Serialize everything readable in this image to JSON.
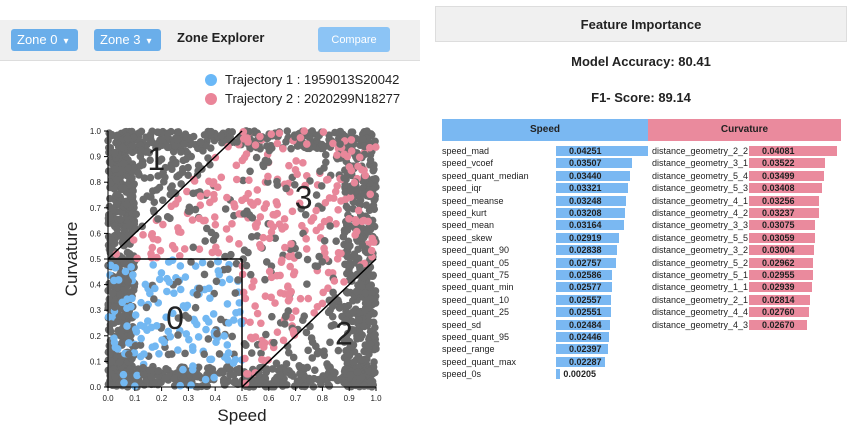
{
  "toolbar": {
    "zone_a": "Zone 0",
    "zone_b": "Zone 3",
    "title": "Zone Explorer",
    "compare_label": "Compare"
  },
  "legend": [
    {
      "label": "Trajectory 1 : 1959013S20042",
      "color": "#6ab8f7"
    },
    {
      "label": "Trajectory 2 : 2020299N18277",
      "color": "#ea8599"
    }
  ],
  "chart_data": {
    "type": "scatter",
    "xlabel": "Speed",
    "ylabel": "Curvature",
    "xlim": [
      0,
      1
    ],
    "ylim": [
      0,
      1
    ],
    "xticks": [
      "0.0",
      "0.1",
      "0.2",
      "0.3",
      "0.4",
      "0.5",
      "0.6",
      "0.7",
      "0.8",
      "0.9",
      "1.0"
    ],
    "yticks": [
      "0.0",
      "0.1",
      "0.2",
      "0.3",
      "0.4",
      "0.5",
      "0.6",
      "0.7",
      "0.8",
      "0.9",
      "1.0"
    ],
    "colors": {
      "gray": "#6b6b6b",
      "blue": "#73b8f2",
      "pink": "#e8879a"
    },
    "zones": [
      {
        "label": "0",
        "region": [
          [
            0,
            0
          ],
          [
            0.5,
            0
          ],
          [
            0.5,
            0.5
          ],
          [
            0,
            0.5
          ]
        ],
        "color": "blue"
      },
      {
        "label": "1",
        "region": [
          [
            0,
            0.5
          ],
          [
            0.5,
            1.0
          ],
          [
            0,
            1.0
          ]
        ],
        "color": "gray"
      },
      {
        "label": "2",
        "region": [
          [
            0.5,
            0
          ],
          [
            1.0,
            0
          ],
          [
            1.0,
            0.5
          ]
        ],
        "color": "gray"
      },
      {
        "label": "3",
        "region": [
          [
            0,
            0.5
          ],
          [
            0.5,
            0.5
          ],
          [
            0.5,
            0
          ],
          [
            1.0,
            0.5
          ],
          [
            1.0,
            1.0
          ],
          [
            0.5,
            1.0
          ]
        ],
        "color": "pink"
      }
    ],
    "zone_labels": [
      {
        "text": "1",
        "x": 0.18,
        "y": 0.88
      },
      {
        "text": "3",
        "x": 0.73,
        "y": 0.73
      },
      {
        "text": "0",
        "x": 0.25,
        "y": 0.26
      },
      {
        "text": "2",
        "x": 0.88,
        "y": 0.2
      }
    ],
    "zone_lines": [
      {
        "x1": 0.0,
        "y1": 0.5,
        "x2": 0.5,
        "y2": 1.0
      },
      {
        "x1": 0.0,
        "y1": 0.5,
        "x2": 0.5,
        "y2": 0.5
      },
      {
        "x1": 0.5,
        "y1": 0.5,
        "x2": 0.5,
        "y2": 0.0
      },
      {
        "x1": 0.5,
        "y1": 0.0,
        "x2": 1.0,
        "y2": 0.5
      }
    ]
  },
  "feature_importance": {
    "header": "Feature Importance",
    "accuracy": "Model Accuracy: 80.41",
    "f1": "F1- Score: 89.14",
    "speed_title": "Speed",
    "curvature_title": "Curvature",
    "colors": {
      "speed": "#7ab8f2",
      "curvature": "#ea8a9d"
    },
    "speed": [
      {
        "name": "speed_mad",
        "value": 0.04251
      },
      {
        "name": "speed_vcoef",
        "value": 0.03507
      },
      {
        "name": "speed_quant_median",
        "value": 0.0344
      },
      {
        "name": "speed_iqr",
        "value": 0.03321
      },
      {
        "name": "speed_meanse",
        "value": 0.03248
      },
      {
        "name": "speed_kurt",
        "value": 0.03208
      },
      {
        "name": "speed_mean",
        "value": 0.03164
      },
      {
        "name": "speed_skew",
        "value": 0.02919
      },
      {
        "name": "speed_quant_90",
        "value": 0.02838
      },
      {
        "name": "speed_quant_05",
        "value": 0.02757
      },
      {
        "name": "speed_quant_75",
        "value": 0.02586
      },
      {
        "name": "speed_quant_min",
        "value": 0.02577
      },
      {
        "name": "speed_quant_10",
        "value": 0.02557
      },
      {
        "name": "speed_quant_25",
        "value": 0.02551
      },
      {
        "name": "speed_sd",
        "value": 0.02484
      },
      {
        "name": "speed_quant_95",
        "value": 0.02446
      },
      {
        "name": "speed_range",
        "value": 0.02397
      },
      {
        "name": "speed_quant_max",
        "value": 0.02287
      },
      {
        "name": "speed_0s",
        "value": 0.00205
      }
    ],
    "speed_labels": [
      "0.04251",
      "0.03507",
      "0.03440",
      "0.03321",
      "0.03248",
      "0.03208",
      "0.03164",
      "0.02919",
      "0.02838",
      "0.02757",
      "0.02586",
      "0.02577",
      "0.02557",
      "0.02551",
      "0.02484",
      "0.02446",
      "0.02397",
      "0.02287",
      "0.00205"
    ],
    "curvature": [
      {
        "name": "distance_geometry_2_2",
        "value": 0.04081
      },
      {
        "name": "distance_geometry_3_1",
        "value": 0.03522
      },
      {
        "name": "distance_geometry_5_4",
        "value": 0.03499
      },
      {
        "name": "distance_geometry_5_3",
        "value": 0.03408
      },
      {
        "name": "distance_geometry_4_1",
        "value": 0.03256
      },
      {
        "name": "distance_geometry_4_2",
        "value": 0.03237
      },
      {
        "name": "distance_geometry_3_3",
        "value": 0.03075
      },
      {
        "name": "distance_geometry_5_5",
        "value": 0.03059
      },
      {
        "name": "distance_geometry_3_2",
        "value": 0.03004
      },
      {
        "name": "distance_geometry_5_2",
        "value": 0.02962
      },
      {
        "name": "distance_geometry_5_1",
        "value": 0.02955
      },
      {
        "name": "distance_geometry_1_1",
        "value": 0.02939
      },
      {
        "name": "distance_geometry_2_1",
        "value": 0.02814
      },
      {
        "name": "distance_geometry_4_4",
        "value": 0.0276
      },
      {
        "name": "distance_geometry_4_3",
        "value": 0.0267
      }
    ],
    "curvature_labels": [
      "0.04081",
      "0.03522",
      "0.03499",
      "0.03408",
      "0.03256",
      "0.03237",
      "0.03075",
      "0.03059",
      "0.03004",
      "0.02962",
      "0.02955",
      "0.02939",
      "0.02814",
      "0.02760",
      "0.02670"
    ]
  }
}
